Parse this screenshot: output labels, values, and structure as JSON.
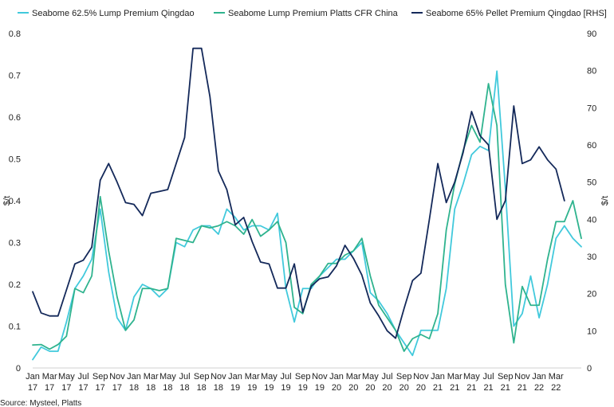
{
  "chart_data": {
    "type": "line",
    "title": "",
    "xlabel": "",
    "ylabel_left": "$/t",
    "ylabel_right": "$/t",
    "ylim_left": [
      0,
      0.8
    ],
    "ylim_right": [
      0,
      90
    ],
    "yticks_left": [
      "0",
      "0.1",
      "0.2",
      "0.3",
      "0.4",
      "0.5",
      "0.6",
      "0.7",
      "0.8"
    ],
    "yticks_right": [
      "0",
      "10",
      "20",
      "30",
      "40",
      "50",
      "60",
      "70",
      "80",
      "90"
    ],
    "x_tick_labels": [
      [
        "Jan",
        "17"
      ],
      [
        "Mar",
        "17"
      ],
      [
        "May",
        "17"
      ],
      [
        "Jul",
        "17"
      ],
      [
        "Sep",
        "17"
      ],
      [
        "Nov",
        "17"
      ],
      [
        "Jan",
        "18"
      ],
      [
        "Mar",
        "18"
      ],
      [
        "May",
        "18"
      ],
      [
        "Jul",
        "18"
      ],
      [
        "Sep",
        "18"
      ],
      [
        "Nov",
        "18"
      ],
      [
        "Jan",
        "19"
      ],
      [
        "Mar",
        "19"
      ],
      [
        "May",
        "19"
      ],
      [
        "Jul",
        "19"
      ],
      [
        "Sep",
        "19"
      ],
      [
        "Nov",
        "19"
      ],
      [
        "Jan",
        "20"
      ],
      [
        "Mar",
        "20"
      ],
      [
        "May",
        "20"
      ],
      [
        "Jul",
        "20"
      ],
      [
        "Sep",
        "20"
      ],
      [
        "Nov",
        "20"
      ],
      [
        "Jan",
        "21"
      ],
      [
        "Mar",
        "21"
      ],
      [
        "May",
        "21"
      ],
      [
        "Jul",
        "21"
      ],
      [
        "Sep",
        "21"
      ],
      [
        "Nov",
        "21"
      ],
      [
        "Jan",
        "22"
      ],
      [
        "Mar",
        "22"
      ]
    ],
    "x_start": "Jan 17",
    "x_step": "1 month",
    "grid": false,
    "legend_position": "top",
    "series": [
      {
        "name": "Seabome 62.5% Lump Premium Qingdao",
        "axis": "left",
        "color": "#41c9dc",
        "values": [
          0.02,
          0.05,
          0.04,
          0.04,
          0.11,
          0.19,
          0.22,
          0.26,
          0.38,
          0.23,
          0.12,
          0.09,
          0.17,
          0.2,
          0.19,
          0.17,
          0.19,
          0.3,
          0.29,
          0.33,
          0.34,
          0.34,
          0.32,
          0.38,
          0.36,
          0.33,
          0.34,
          0.34,
          0.33,
          0.37,
          0.19,
          0.11,
          0.19,
          0.19,
          0.22,
          0.24,
          0.26,
          0.26,
          0.28,
          0.3,
          0.18,
          0.16,
          0.13,
          0.09,
          0.06,
          0.03,
          0.09,
          0.09,
          0.09,
          0.19,
          0.38,
          0.44,
          0.51,
          0.53,
          0.52,
          0.71,
          0.43,
          0.1,
          0.13,
          0.22,
          0.12,
          0.2,
          0.31,
          0.34,
          0.31,
          0.29
        ]
      },
      {
        "name": "Seabome Lump Premium Platts CFR China",
        "axis": "left",
        "color": "#2fb38e",
        "values": [
          0.055,
          0.056,
          0.045,
          0.056,
          0.076,
          0.19,
          0.18,
          0.22,
          0.41,
          0.28,
          0.17,
          0.09,
          0.115,
          0.19,
          0.19,
          0.185,
          0.19,
          0.31,
          0.305,
          0.3,
          0.34,
          0.335,
          0.34,
          0.35,
          0.34,
          0.32,
          0.355,
          0.315,
          0.33,
          0.35,
          0.3,
          0.145,
          0.13,
          0.2,
          0.22,
          0.25,
          0.25,
          0.27,
          0.28,
          0.31,
          0.22,
          0.15,
          0.12,
          0.09,
          0.04,
          0.07,
          0.08,
          0.07,
          0.13,
          0.33,
          0.44,
          0.52,
          0.58,
          0.54,
          0.68,
          0.58,
          0.2,
          0.06,
          0.195,
          0.15,
          0.15,
          0.26,
          0.35,
          0.35,
          0.4,
          0.31
        ]
      },
      {
        "name": "Seabome 65% Pellet Premium Qingdao [RHS]",
        "axis": "right",
        "color": "#14295a",
        "values": [
          20.5,
          14.8,
          14,
          14,
          21,
          28,
          29,
          32.5,
          50.5,
          55,
          50,
          44.5,
          44,
          41,
          47,
          47.5,
          48,
          55,
          62,
          86,
          86,
          73,
          53,
          48,
          38.5,
          40.5,
          34,
          28.5,
          28,
          21.5,
          21.5,
          28,
          15,
          22,
          24,
          24.5,
          27.5,
          33,
          29.5,
          25,
          17.5,
          14,
          10,
          8,
          16,
          23.5,
          25.5,
          40,
          55,
          44.5,
          50,
          58,
          69,
          62.5,
          60,
          40,
          45,
          70.5,
          55,
          56,
          59.5,
          56,
          53.5,
          45
        ]
      }
    ],
    "source": "Source: Mysteel, Platts"
  }
}
